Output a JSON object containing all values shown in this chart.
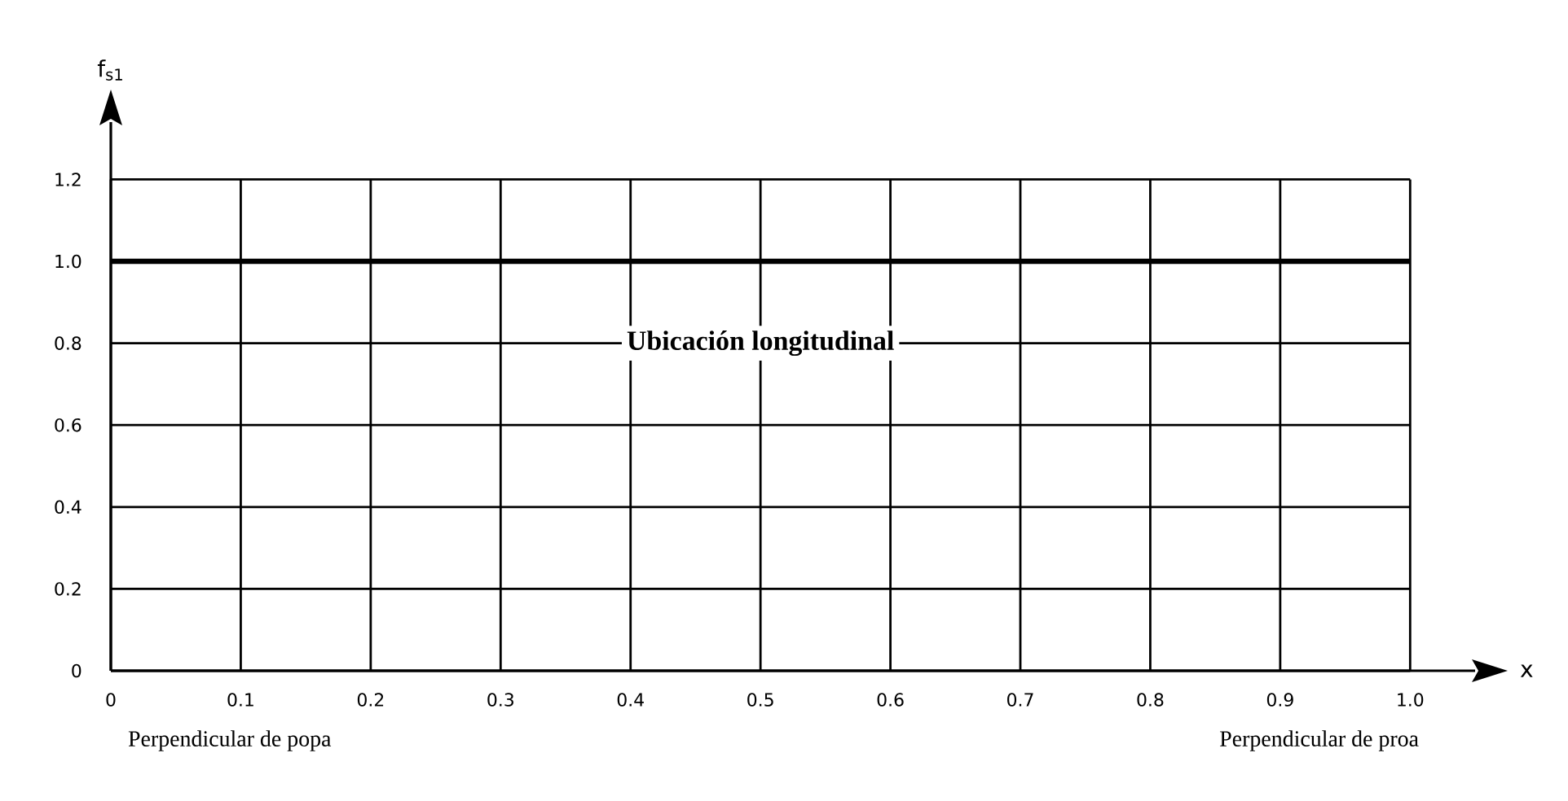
{
  "chart_data": {
    "type": "line",
    "xlabel": "x",
    "ylabel": "f$_{s1}$",
    "ref_lines": [
      {
        "axis": "y",
        "value": 1.0,
        "color": "#000000",
        "line_style": "solid"
      }
    ],
    "xlim": [
      0,
      1.05
    ],
    "ylim": [
      0,
      1.34
    ],
    "xticks": [
      0,
      0.1,
      0.2,
      0.3,
      0.4,
      0.5,
      0.6,
      0.7,
      0.8,
      0.9,
      {
        "value": 1.0,
        "label": "1.0"
      }
    ],
    "yticks": [
      0,
      0.2,
      0.4,
      0.6,
      0.8,
      {
        "value": 1.0,
        "label": "1.0"
      },
      1.2
    ],
    "grid": true,
    "annotations": [
      "Ubicación longitudinal",
      "Perpendicular de popa",
      "Perpendicular de proa"
    ]
  }
}
